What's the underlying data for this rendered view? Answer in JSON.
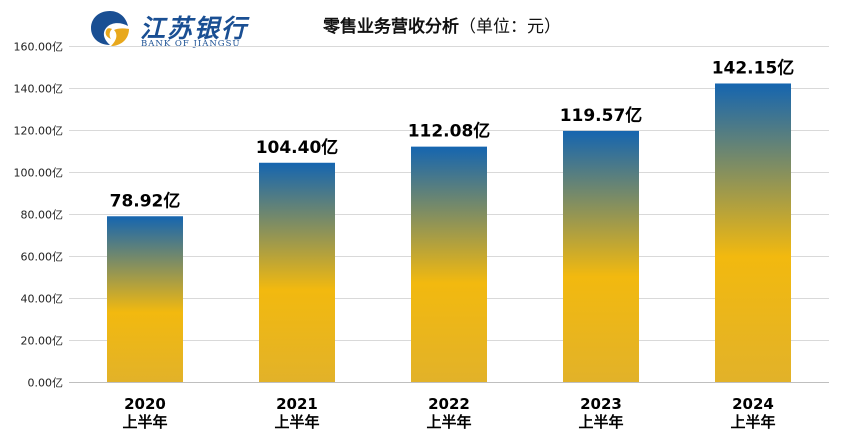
{
  "header": {
    "bank_name_cn": "江苏银行",
    "bank_name_en": "BANK OF JIANGSU",
    "title_main": "零售业务营收分析",
    "title_unit": "（单位：元）"
  },
  "colors": {
    "brand_blue": "#1a4f93",
    "brand_gold": "#e8a81c",
    "bar_top": "#1565b0",
    "bar_mid": "#f2b90f",
    "bar_bottom": "#e2b229"
  },
  "chart_data": {
    "type": "bar",
    "title": "零售业务营收分析（单位：元）",
    "categories": [
      [
        "2020",
        "上半年"
      ],
      [
        "2021",
        "上半年"
      ],
      [
        "2022",
        "上半年"
      ],
      [
        "2023",
        "上半年"
      ],
      [
        "2024",
        "上半年"
      ]
    ],
    "values": [
      78.92,
      104.4,
      112.08,
      119.57,
      142.15
    ],
    "value_labels": [
      "78.92亿",
      "104.40亿",
      "112.08亿",
      "119.57亿",
      "142.15亿"
    ],
    "y_ticks": [
      0,
      20,
      40,
      60,
      80,
      100,
      120,
      140,
      160
    ],
    "y_tick_labels": [
      "0.00亿",
      "20.00亿",
      "40.00亿",
      "60.00亿",
      "80.00亿",
      "100.00亿",
      "120.00亿",
      "140.00亿",
      "160.00亿"
    ],
    "ylim": [
      0,
      160
    ],
    "xlabel": "",
    "ylabel": "",
    "grid": true,
    "legend": "none"
  }
}
